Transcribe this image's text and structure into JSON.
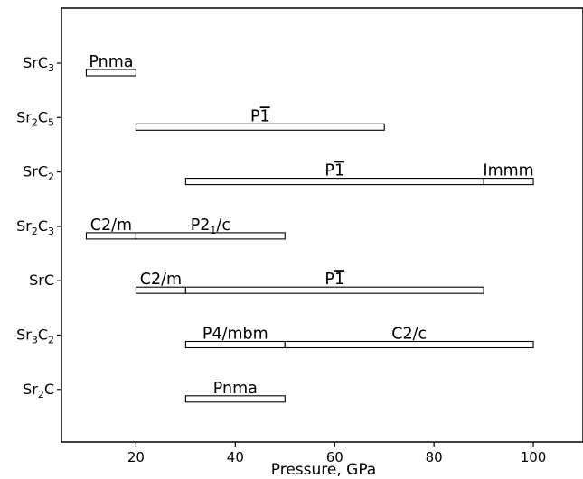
{
  "chart_data": {
    "type": "bar",
    "xlabel": "Pressure, GPa",
    "ylabel": "",
    "xlim": [
      5,
      110
    ],
    "x_ticks": [
      20,
      40,
      60,
      80,
      100
    ],
    "grid": false,
    "legend": "none",
    "bar_fill": "#ffffff",
    "bar_edge": "#000000",
    "compounds": [
      {
        "parts": [
          {
            "t": "SrC"
          },
          {
            "t": "3",
            "sub": true
          }
        ]
      },
      {
        "parts": [
          {
            "t": "Sr"
          },
          {
            "t": "2",
            "sub": true
          },
          {
            "t": "C"
          },
          {
            "t": "5",
            "sub": true
          }
        ]
      },
      {
        "parts": [
          {
            "t": "SrC"
          },
          {
            "t": "2",
            "sub": true
          }
        ]
      },
      {
        "parts": [
          {
            "t": "Sr"
          },
          {
            "t": "2",
            "sub": true
          },
          {
            "t": "C"
          },
          {
            "t": "3",
            "sub": true
          }
        ]
      },
      {
        "parts": [
          {
            "t": "SrC"
          }
        ]
      },
      {
        "parts": [
          {
            "t": "Sr"
          },
          {
            "t": "3",
            "sub": true
          },
          {
            "t": "C"
          },
          {
            "t": "2",
            "sub": true
          }
        ]
      },
      {
        "parts": [
          {
            "t": "Sr"
          },
          {
            "t": "2",
            "sub": true
          },
          {
            "t": "C"
          }
        ]
      }
    ],
    "phases": [
      {
        "row": 0,
        "start": 10,
        "end": 20,
        "label": [
          {
            "t": "Pnma"
          }
        ]
      },
      {
        "row": 1,
        "start": 20,
        "end": 70,
        "label": [
          {
            "t": "P"
          },
          {
            "t": "1",
            "bar": true
          }
        ]
      },
      {
        "row": 2,
        "start": 30,
        "end": 90,
        "label": [
          {
            "t": "P"
          },
          {
            "t": "1",
            "bar": true
          }
        ]
      },
      {
        "row": 2,
        "start": 90,
        "end": 100,
        "label": [
          {
            "t": "Immm"
          }
        ]
      },
      {
        "row": 3,
        "start": 10,
        "end": 20,
        "label": [
          {
            "t": "C2/m"
          }
        ]
      },
      {
        "row": 3,
        "start": 20,
        "end": 50,
        "label": [
          {
            "t": "P2"
          },
          {
            "t": "1",
            "sub": true
          },
          {
            "t": "/c"
          }
        ]
      },
      {
        "row": 4,
        "start": 20,
        "end": 30,
        "label": [
          {
            "t": "C2/m"
          }
        ]
      },
      {
        "row": 4,
        "start": 30,
        "end": 90,
        "label": [
          {
            "t": "P"
          },
          {
            "t": "1",
            "bar": true
          }
        ]
      },
      {
        "row": 5,
        "start": 30,
        "end": 50,
        "label": [
          {
            "t": "P4/mbm"
          }
        ]
      },
      {
        "row": 5,
        "start": 50,
        "end": 100,
        "label": [
          {
            "t": "C2/c"
          }
        ]
      },
      {
        "row": 6,
        "start": 30,
        "end": 50,
        "label": [
          {
            "t": "Pnma"
          }
        ]
      }
    ]
  }
}
